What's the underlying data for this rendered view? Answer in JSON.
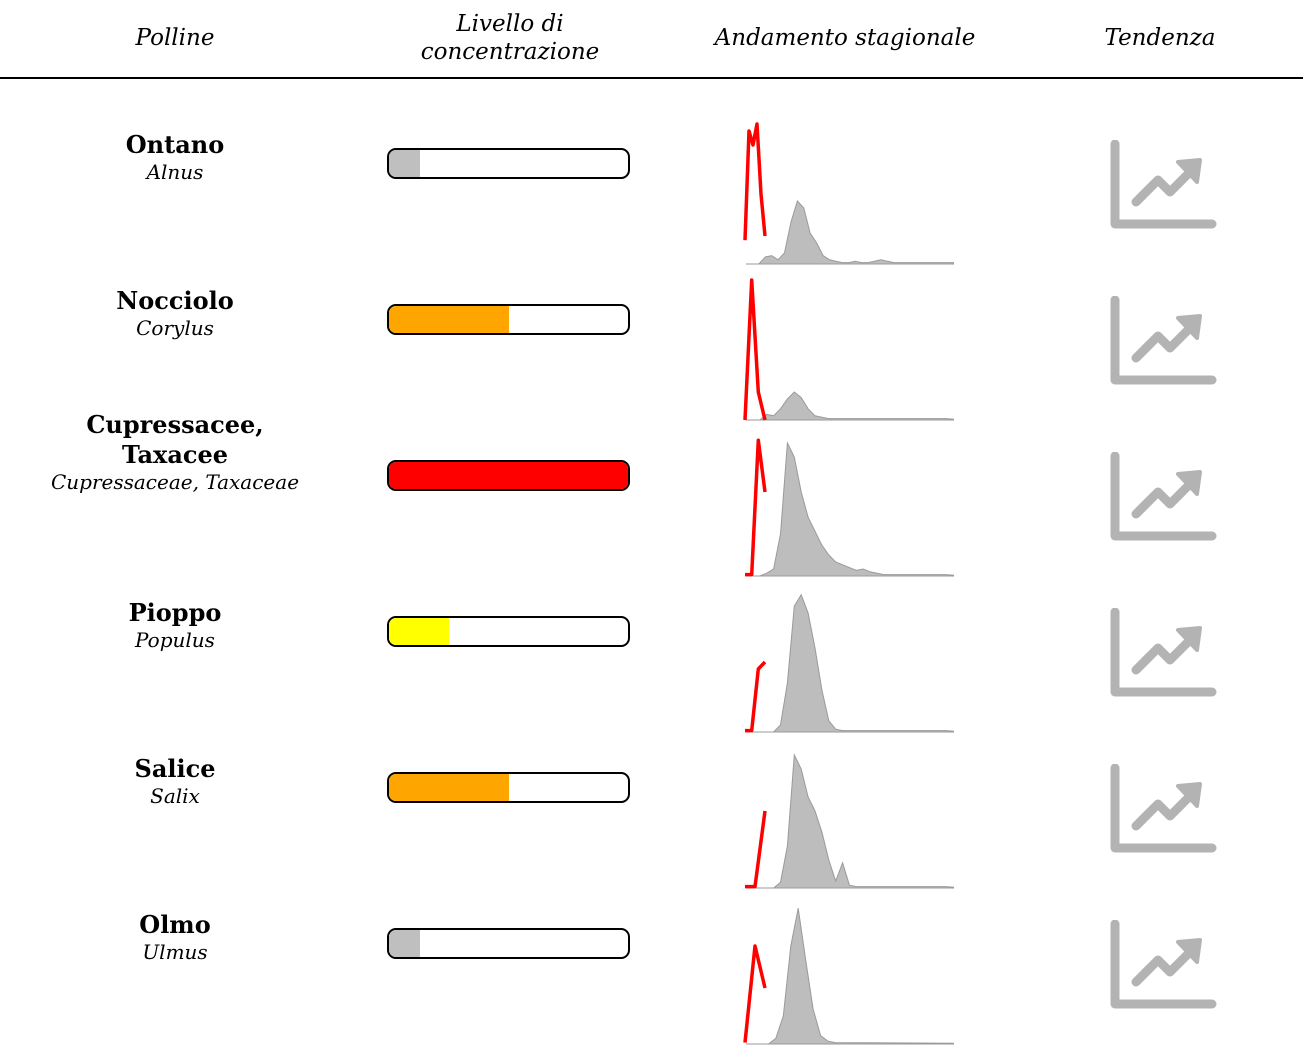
{
  "header": {
    "polline": "Polline",
    "livello": "Livello di concentrazione",
    "andamento": "Andamento stagionale",
    "tendenza": "Tendenza"
  },
  "trend_icon": "trending-up-icon",
  "colors": {
    "gray_fill": "#bbbbbb",
    "trend_gray": "#b3b3b3",
    "season_line": "#ff0000",
    "area": "#bdbdbd"
  },
  "rows": [
    {
      "common": "Ontano",
      "latin": "Alnus",
      "level": 0.13,
      "level_color": "#bfbfbf",
      "area": [
        0,
        0,
        0,
        0.05,
        0.06,
        0.03,
        0.08,
        0.3,
        0.45,
        0.4,
        0.22,
        0.15,
        0.06,
        0.03,
        0.02,
        0.01,
        0.01,
        0.02,
        0.01,
        0.01,
        0.02,
        0.03,
        0.02,
        0.01,
        0.01,
        0.01,
        0.01,
        0.01,
        0.01,
        0.01,
        0.01,
        0.01,
        0.01,
        0.01
      ],
      "line": [
        0.17,
        0.95,
        0.85,
        1.0,
        0.5,
        0.2
      ]
    },
    {
      "common": "Nocciolo",
      "latin": "Corylus",
      "level": 0.5,
      "level_color": "#ffa500",
      "area": [
        0,
        0,
        0,
        0.04,
        0.03,
        0.08,
        0.15,
        0.2,
        0.16,
        0.08,
        0.03,
        0.02,
        0.01,
        0.01,
        0.01,
        0.01,
        0.01,
        0.01,
        0.01,
        0.01,
        0.01,
        0.01,
        0.01,
        0.01,
        0.01,
        0.01,
        0.01,
        0.01,
        0.01,
        0.01
      ],
      "line": [
        0.0,
        1.0,
        0.2,
        0.0
      ]
    },
    {
      "common": "Cupressacee, Taxacee",
      "latin": "Cupressaceae, Taxaceae",
      "level": 1.0,
      "level_color": "#ff0000",
      "area": [
        0,
        0,
        0,
        0.02,
        0.05,
        0.3,
        0.95,
        0.85,
        0.6,
        0.42,
        0.32,
        0.22,
        0.15,
        0.1,
        0.08,
        0.06,
        0.04,
        0.05,
        0.03,
        0.02,
        0.01,
        0.01,
        0.01,
        0.01,
        0.01,
        0.01,
        0.01,
        0.01,
        0.01,
        0.01
      ],
      "line": [
        0.01,
        0.01,
        0.97,
        0.6
      ]
    },
    {
      "common": "Pioppo",
      "latin": "Populus",
      "level": 0.25,
      "level_color": "#ffff00",
      "area": [
        0,
        0,
        0,
        0,
        0,
        0.05,
        0.35,
        0.9,
        0.98,
        0.85,
        0.6,
        0.3,
        0.08,
        0.02,
        0.01,
        0.01,
        0.01,
        0.01,
        0.01,
        0.01,
        0.01,
        0.01,
        0.01,
        0.01,
        0.01,
        0.01,
        0.01,
        0.01,
        0.01,
        0.01
      ],
      "line": [
        0.01,
        0.01,
        0.45,
        0.5
      ]
    },
    {
      "common": "Salice",
      "latin": "Salix",
      "level": 0.5,
      "level_color": "#ffa500",
      "area": [
        0,
        0,
        0,
        0,
        0,
        0.04,
        0.3,
        0.95,
        0.85,
        0.65,
        0.55,
        0.4,
        0.2,
        0.05,
        0.18,
        0.02,
        0.01,
        0.01,
        0.01,
        0.01,
        0.01,
        0.01,
        0.01,
        0.01,
        0.01,
        0.01,
        0.01,
        0.01,
        0.01,
        0.01
      ],
      "line": [
        0.01,
        0.01,
        0.55
      ]
    },
    {
      "common": "Olmo",
      "latin": "Ulmus",
      "level": 0.13,
      "level_color": "#bfbfbf",
      "area": [
        0,
        0,
        0,
        0,
        0.04,
        0.2,
        0.7,
        0.97,
        0.6,
        0.25,
        0.06,
        0.02,
        0.01
      ],
      "line": [
        0.01,
        0.7,
        0.4
      ]
    }
  ]
}
